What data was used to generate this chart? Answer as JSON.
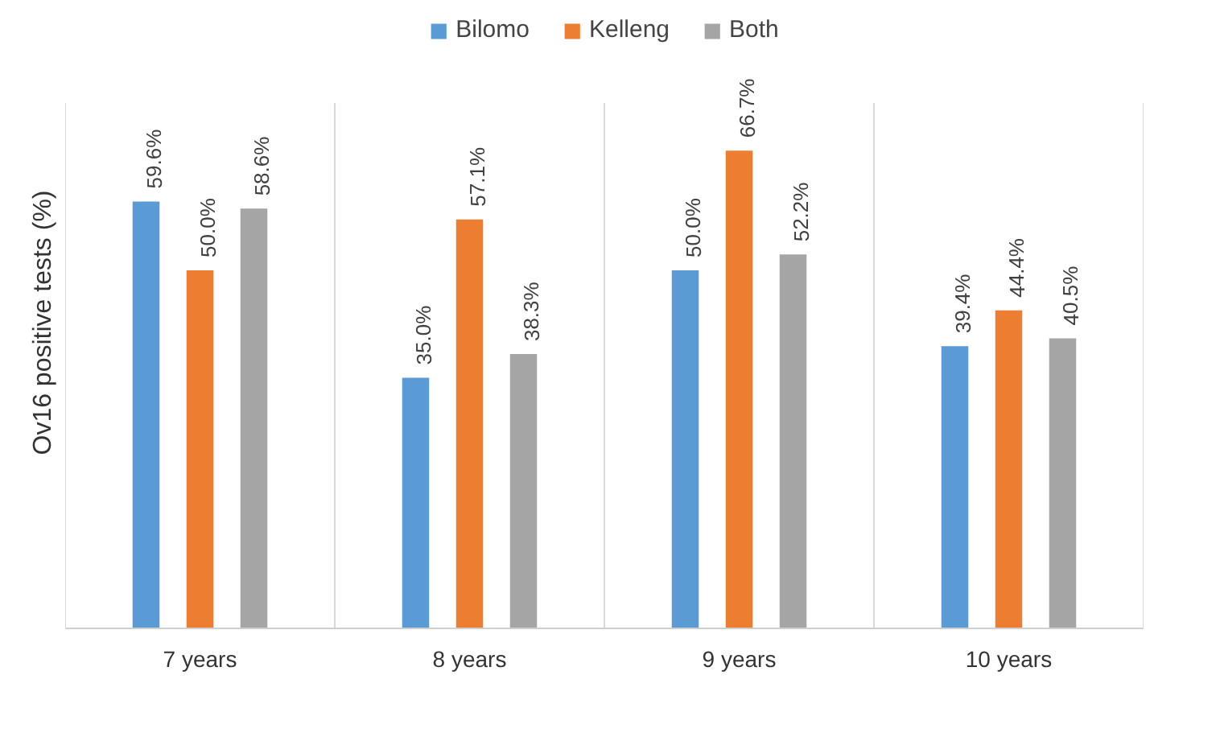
{
  "chart_data": {
    "type": "bar",
    "ylabel": "Ov16 positive tests (%)",
    "categories": [
      "7 years",
      "8 years",
      "9 years",
      "10 years"
    ],
    "series": [
      {
        "name": "Bilomo",
        "color": "#5b9bd5",
        "values": [
          59.6,
          35.0,
          50.0,
          39.4
        ],
        "value_labels": [
          "59.6%",
          "35.0%",
          "50.0%",
          "39.4%"
        ]
      },
      {
        "name": "Kelleng",
        "color": "#ed7d31",
        "values": [
          50.0,
          57.1,
          66.7,
          44.4
        ],
        "value_labels": [
          "50.0%",
          "57.1%",
          "66.7%",
          "44.4%"
        ]
      },
      {
        "name": "Both",
        "color": "#a5a5a5",
        "values": [
          58.6,
          38.3,
          52.2,
          40.5
        ],
        "value_labels": [
          "58.6%",
          "38.3%",
          "52.2%",
          "40.5%"
        ]
      }
    ],
    "legend": "top"
  }
}
